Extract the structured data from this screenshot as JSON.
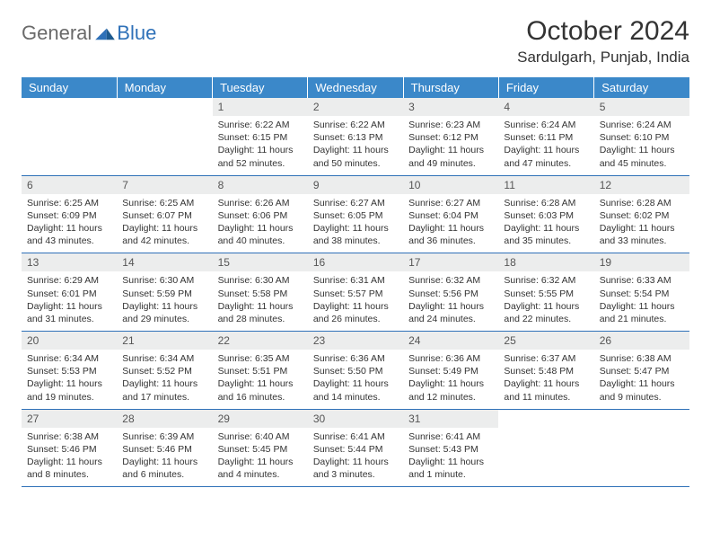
{
  "logo": {
    "part1": "General",
    "part2": "Blue"
  },
  "title": "October 2024",
  "location": "Sardulgarh, Punjab, India",
  "colors": {
    "header_bg": "#3b88c9",
    "header_text": "#ffffff",
    "daynum_bg": "#eceded",
    "border": "#2f71b8",
    "logo_gray": "#6a6a6a",
    "logo_blue": "#2f71b8"
  },
  "weekdays": [
    "Sunday",
    "Monday",
    "Tuesday",
    "Wednesday",
    "Thursday",
    "Friday",
    "Saturday"
  ],
  "weeks": [
    [
      null,
      null,
      {
        "n": "1",
        "sr": "6:22 AM",
        "ss": "6:15 PM",
        "dl": "11 hours and 52 minutes."
      },
      {
        "n": "2",
        "sr": "6:22 AM",
        "ss": "6:13 PM",
        "dl": "11 hours and 50 minutes."
      },
      {
        "n": "3",
        "sr": "6:23 AM",
        "ss": "6:12 PM",
        "dl": "11 hours and 49 minutes."
      },
      {
        "n": "4",
        "sr": "6:24 AM",
        "ss": "6:11 PM",
        "dl": "11 hours and 47 minutes."
      },
      {
        "n": "5",
        "sr": "6:24 AM",
        "ss": "6:10 PM",
        "dl": "11 hours and 45 minutes."
      }
    ],
    [
      {
        "n": "6",
        "sr": "6:25 AM",
        "ss": "6:09 PM",
        "dl": "11 hours and 43 minutes."
      },
      {
        "n": "7",
        "sr": "6:25 AM",
        "ss": "6:07 PM",
        "dl": "11 hours and 42 minutes."
      },
      {
        "n": "8",
        "sr": "6:26 AM",
        "ss": "6:06 PM",
        "dl": "11 hours and 40 minutes."
      },
      {
        "n": "9",
        "sr": "6:27 AM",
        "ss": "6:05 PM",
        "dl": "11 hours and 38 minutes."
      },
      {
        "n": "10",
        "sr": "6:27 AM",
        "ss": "6:04 PM",
        "dl": "11 hours and 36 minutes."
      },
      {
        "n": "11",
        "sr": "6:28 AM",
        "ss": "6:03 PM",
        "dl": "11 hours and 35 minutes."
      },
      {
        "n": "12",
        "sr": "6:28 AM",
        "ss": "6:02 PM",
        "dl": "11 hours and 33 minutes."
      }
    ],
    [
      {
        "n": "13",
        "sr": "6:29 AM",
        "ss": "6:01 PM",
        "dl": "11 hours and 31 minutes."
      },
      {
        "n": "14",
        "sr": "6:30 AM",
        "ss": "5:59 PM",
        "dl": "11 hours and 29 minutes."
      },
      {
        "n": "15",
        "sr": "6:30 AM",
        "ss": "5:58 PM",
        "dl": "11 hours and 28 minutes."
      },
      {
        "n": "16",
        "sr": "6:31 AM",
        "ss": "5:57 PM",
        "dl": "11 hours and 26 minutes."
      },
      {
        "n": "17",
        "sr": "6:32 AM",
        "ss": "5:56 PM",
        "dl": "11 hours and 24 minutes."
      },
      {
        "n": "18",
        "sr": "6:32 AM",
        "ss": "5:55 PM",
        "dl": "11 hours and 22 minutes."
      },
      {
        "n": "19",
        "sr": "6:33 AM",
        "ss": "5:54 PM",
        "dl": "11 hours and 21 minutes."
      }
    ],
    [
      {
        "n": "20",
        "sr": "6:34 AM",
        "ss": "5:53 PM",
        "dl": "11 hours and 19 minutes."
      },
      {
        "n": "21",
        "sr": "6:34 AM",
        "ss": "5:52 PM",
        "dl": "11 hours and 17 minutes."
      },
      {
        "n": "22",
        "sr": "6:35 AM",
        "ss": "5:51 PM",
        "dl": "11 hours and 16 minutes."
      },
      {
        "n": "23",
        "sr": "6:36 AM",
        "ss": "5:50 PM",
        "dl": "11 hours and 14 minutes."
      },
      {
        "n": "24",
        "sr": "6:36 AM",
        "ss": "5:49 PM",
        "dl": "11 hours and 12 minutes."
      },
      {
        "n": "25",
        "sr": "6:37 AM",
        "ss": "5:48 PM",
        "dl": "11 hours and 11 minutes."
      },
      {
        "n": "26",
        "sr": "6:38 AM",
        "ss": "5:47 PM",
        "dl": "11 hours and 9 minutes."
      }
    ],
    [
      {
        "n": "27",
        "sr": "6:38 AM",
        "ss": "5:46 PM",
        "dl": "11 hours and 8 minutes."
      },
      {
        "n": "28",
        "sr": "6:39 AM",
        "ss": "5:46 PM",
        "dl": "11 hours and 6 minutes."
      },
      {
        "n": "29",
        "sr": "6:40 AM",
        "ss": "5:45 PM",
        "dl": "11 hours and 4 minutes."
      },
      {
        "n": "30",
        "sr": "6:41 AM",
        "ss": "5:44 PM",
        "dl": "11 hours and 3 minutes."
      },
      {
        "n": "31",
        "sr": "6:41 AM",
        "ss": "5:43 PM",
        "dl": "11 hours and 1 minute."
      },
      null,
      null
    ]
  ],
  "labels": {
    "sunrise": "Sunrise:",
    "sunset": "Sunset:",
    "daylight": "Daylight:"
  }
}
